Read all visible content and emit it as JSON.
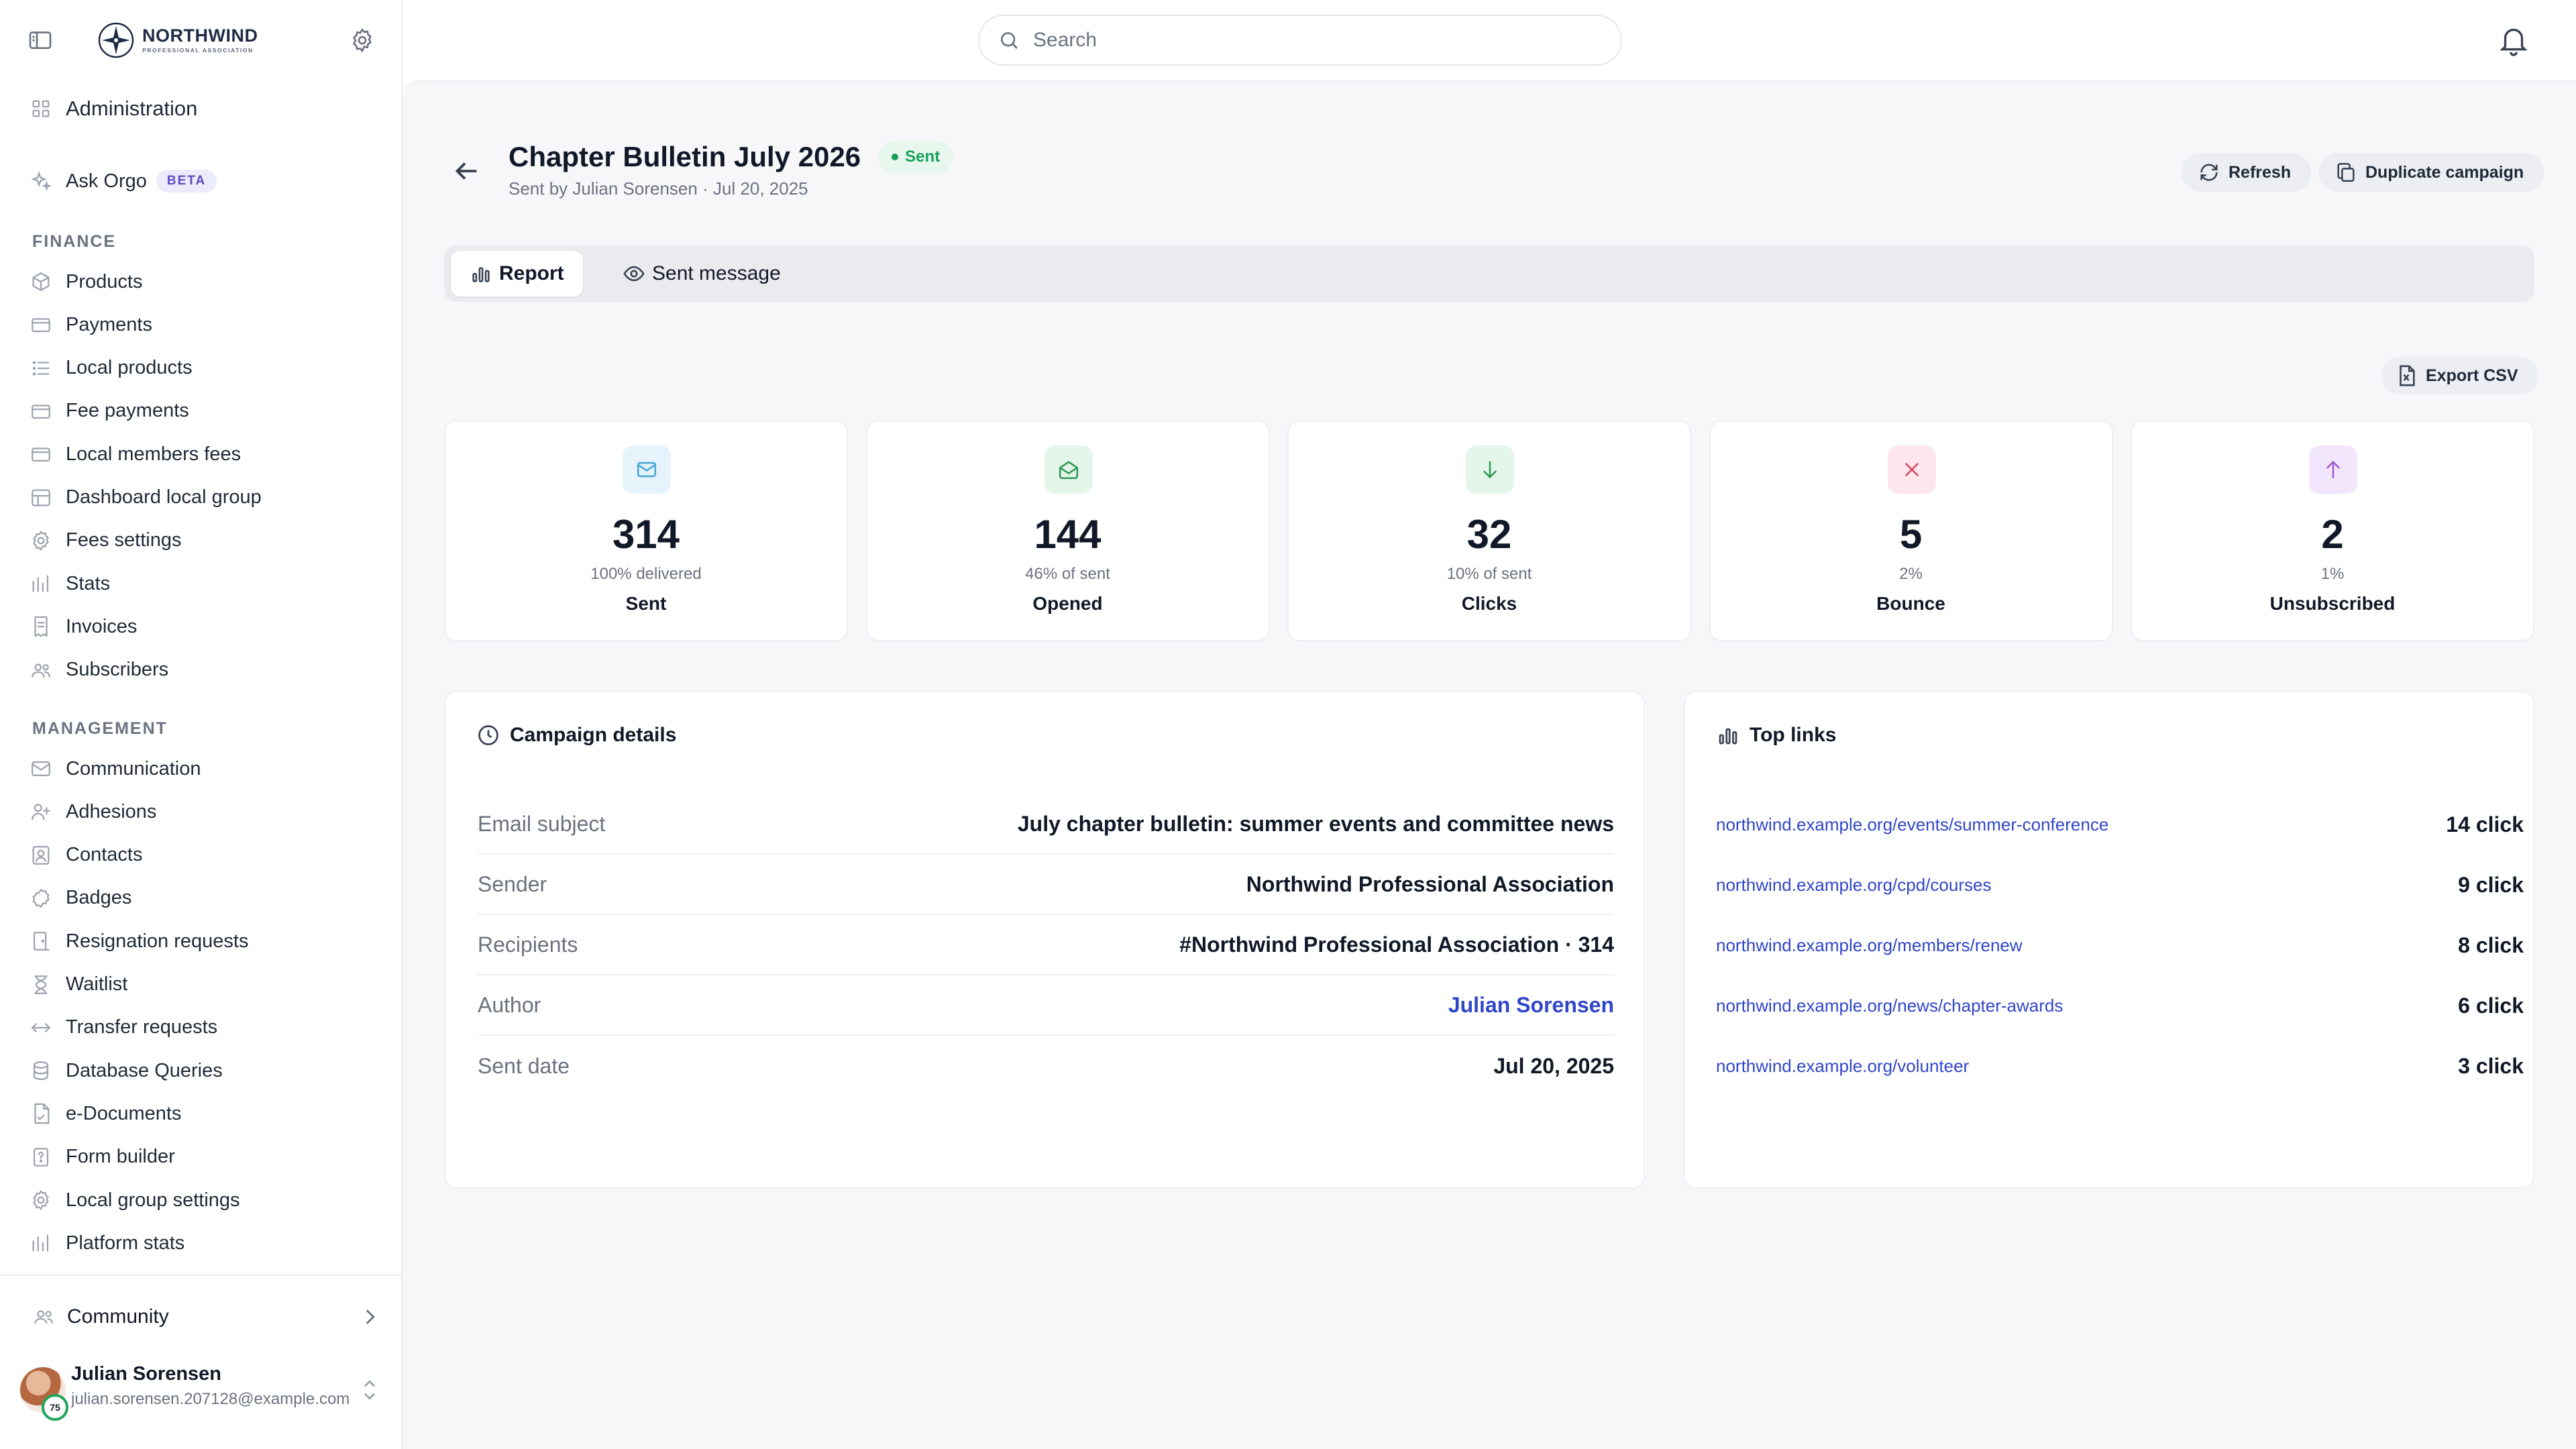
{
  "brand": {
    "name": "NORTHWIND",
    "sub": "PROFESSIONAL ASSOCIATION"
  },
  "search": {
    "placeholder": "Search"
  },
  "sidebar": {
    "admin": "Administration",
    "ask": {
      "label": "Ask Orgo",
      "badge": "BETA"
    },
    "finance_title": "FINANCE",
    "finance": [
      {
        "label": "Products",
        "icon": "box-icon"
      },
      {
        "label": "Payments",
        "icon": "credit-card-icon"
      },
      {
        "label": "Local products",
        "icon": "list-icon"
      },
      {
        "label": "Fee payments",
        "icon": "credit-card-icon"
      },
      {
        "label": "Local members fees",
        "icon": "credit-card-icon"
      },
      {
        "label": "Dashboard local group",
        "icon": "table-icon"
      },
      {
        "label": "Fees settings",
        "icon": "gear-icon"
      },
      {
        "label": "Stats",
        "icon": "chart-icon"
      },
      {
        "label": "Invoices",
        "icon": "invoice-icon"
      },
      {
        "label": "Subscribers",
        "icon": "users-icon"
      }
    ],
    "management_title": "MANAGEMENT",
    "management": [
      {
        "label": "Communication",
        "icon": "mail-icon"
      },
      {
        "label": "Adhesions",
        "icon": "user-plus-icon"
      },
      {
        "label": "Contacts",
        "icon": "contact-icon"
      },
      {
        "label": "Badges",
        "icon": "badge-icon"
      },
      {
        "label": "Resignation requests",
        "icon": "door-icon"
      },
      {
        "label": "Waitlist",
        "icon": "hourglass-icon"
      },
      {
        "label": "Transfer requests",
        "icon": "transfer-icon"
      },
      {
        "label": "Database Queries",
        "icon": "database-icon"
      },
      {
        "label": "e-Documents",
        "icon": "document-icon"
      },
      {
        "label": "Form builder",
        "icon": "form-icon"
      },
      {
        "label": "Local group settings",
        "icon": "gear-icon"
      },
      {
        "label": "Platform stats",
        "icon": "chart-icon"
      }
    ],
    "community": "Community",
    "user": {
      "name": "Julian Sorensen",
      "email": "julian.sorensen.207128@example.com",
      "badge": "75"
    }
  },
  "campaign": {
    "title": "Chapter Bulletin July 2026",
    "status": "Sent",
    "subtitle": "Sent by Julian Sorensen · Jul 20, 2025",
    "refresh": "Refresh",
    "duplicate": "Duplicate campaign",
    "tabs": [
      "Report",
      "Sent message"
    ],
    "export": "Export CSV"
  },
  "stats": [
    {
      "value": "314",
      "sub": "100% delivered",
      "label": "Sent",
      "bg": "#e6f3fb",
      "fg": "#4aa6d6",
      "icon": "mail-icon"
    },
    {
      "value": "144",
      "sub": "46% of sent",
      "label": "Opened",
      "bg": "#e4f5ea",
      "fg": "#2f9a5a",
      "icon": "mail-open-icon"
    },
    {
      "value": "32",
      "sub": "10% of sent",
      "label": "Clicks",
      "bg": "#e4f5ea",
      "fg": "#2f9a5a",
      "icon": "arrow-down-icon"
    },
    {
      "value": "5",
      "sub": "2%",
      "label": "Bounce",
      "bg": "#fde7ec",
      "fg": "#d6455f",
      "icon": "x-icon"
    },
    {
      "value": "2",
      "sub": "1%",
      "label": "Unsubscribed",
      "bg": "#f1e6fb",
      "fg": "#9b59d0",
      "icon": "arrow-up-icon"
    }
  ],
  "details": {
    "title": "Campaign details",
    "rows": [
      {
        "k": "Email subject",
        "v": "July chapter bulletin: summer events and committee news"
      },
      {
        "k": "Sender",
        "v": "Northwind Professional Association"
      },
      {
        "k": "Recipients",
        "v": "#Northwind Professional Association · 314"
      },
      {
        "k": "Author",
        "v": "Julian Sorensen"
      },
      {
        "k": "Sent date",
        "v": "Jul 20, 2025"
      }
    ]
  },
  "links": {
    "title": "Top links",
    "rows": [
      {
        "url": "northwind.example.org/events/summer-conference",
        "count": "14 click"
      },
      {
        "url": "northwind.example.org/cpd/courses",
        "count": "9 click"
      },
      {
        "url": "northwind.example.org/members/renew",
        "count": "8 click"
      },
      {
        "url": "northwind.example.org/news/chapter-awards",
        "count": "6 click"
      },
      {
        "url": "northwind.example.org/volunteer",
        "count": "3 click"
      }
    ]
  }
}
